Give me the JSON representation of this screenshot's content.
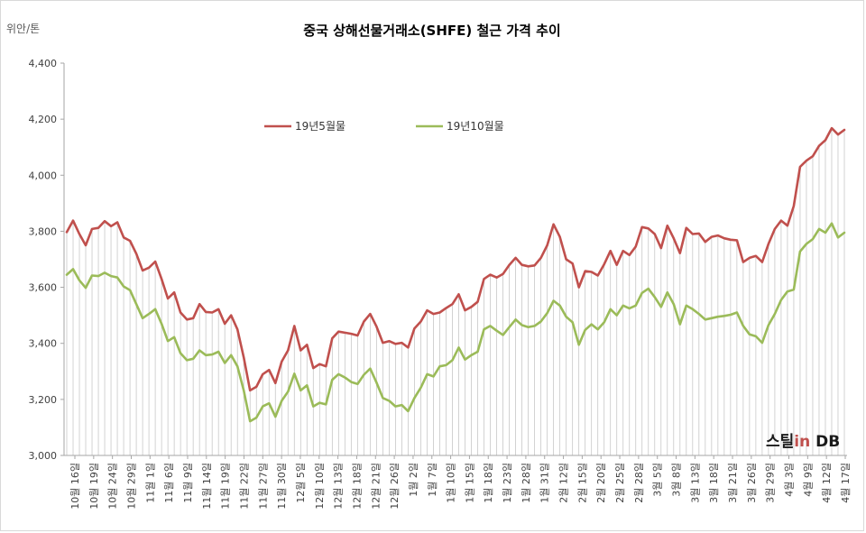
{
  "page": {
    "unit": "위안/톤",
    "title": "중국 상해선물거래소(SHFE) 철근 가격 추이",
    "watermark": {
      "text": "스틸",
      "highlight": "in",
      "suffix": " DB"
    }
  },
  "chart_data": {
    "type": "line",
    "title": "중국 상해선물거래소(SHFE) 철근 가격 추이",
    "ylabel": "위안/톤",
    "ylim": [
      3000,
      4400
    ],
    "yticks": [
      "3,000",
      "3,200",
      "3,400",
      "3,600",
      "3,800",
      "4,000",
      "4,200",
      "4,400"
    ],
    "grid": "vertical-per-point",
    "legend_position": "top-center",
    "x_tick_labels": [
      "10월 16일",
      "10월 19일",
      "10월 24일",
      "10월 29일",
      "11월 1일",
      "11월 6일",
      "11월 9일",
      "11월 14일",
      "11월 19일",
      "11월 22일",
      "11월 27일",
      "11월 30일",
      "12월 5일",
      "12월 10일",
      "12월 13일",
      "12월 18일",
      "12월 21일",
      "12월 26일",
      "1월 2일",
      "1월 7일",
      "1월 10일",
      "1월 15일",
      "1월 18일",
      "1월 23일",
      "1월 28일",
      "1월 31일",
      "2월 12일",
      "2월 15일",
      "2월 20일",
      "2월 25일",
      "2월 28일",
      "3월 5일",
      "3월 8일",
      "3월 13일",
      "3월 18일",
      "3월 21일",
      "3월 26일",
      "3월 29일",
      "4월 3일",
      "4월 9일",
      "4월 12일",
      "4월 17일"
    ],
    "series": [
      {
        "name": "19년5월물",
        "color": "#c0504d",
        "values": [
          3797,
          3838,
          3790,
          3750,
          3808,
          3812,
          3836,
          3818,
          3832,
          3778,
          3766,
          3720,
          3660,
          3670,
          3692,
          3630,
          3560,
          3582,
          3510,
          3485,
          3490,
          3540,
          3512,
          3510,
          3522,
          3470,
          3500,
          3450,
          3350,
          3232,
          3245,
          3290,
          3305,
          3258,
          3335,
          3375,
          3462,
          3375,
          3395,
          3312,
          3326,
          3318,
          3418,
          3442,
          3438,
          3434,
          3428,
          3478,
          3505,
          3460,
          3402,
          3408,
          3398,
          3402,
          3385,
          3453,
          3478,
          3518,
          3505,
          3510,
          3526,
          3540,
          3575,
          3518,
          3530,
          3548,
          3630,
          3645,
          3635,
          3648,
          3680,
          3705,
          3680,
          3675,
          3678,
          3705,
          3750,
          3825,
          3780,
          3700,
          3685,
          3600,
          3658,
          3655,
          3642,
          3682,
          3730,
          3680,
          3730,
          3715,
          3745,
          3815,
          3810,
          3790,
          3740,
          3820,
          3775,
          3722,
          3812,
          3790,
          3792,
          3762,
          3780,
          3785,
          3775,
          3770,
          3768,
          3690,
          3705,
          3712,
          3690,
          3755,
          3808,
          3838,
          3820,
          3890,
          4030,
          4052,
          4068,
          4105,
          4125,
          4168,
          4145,
          4162
        ]
      },
      {
        "name": "19년10월물",
        "color": "#9bbb59",
        "values": [
          3645,
          3665,
          3625,
          3598,
          3642,
          3640,
          3652,
          3640,
          3635,
          3603,
          3590,
          3540,
          3490,
          3505,
          3522,
          3470,
          3408,
          3422,
          3365,
          3340,
          3345,
          3375,
          3358,
          3360,
          3370,
          3330,
          3358,
          3318,
          3232,
          3122,
          3135,
          3175,
          3186,
          3138,
          3195,
          3228,
          3292,
          3232,
          3250,
          3175,
          3188,
          3182,
          3270,
          3290,
          3278,
          3262,
          3255,
          3288,
          3310,
          3260,
          3205,
          3195,
          3175,
          3180,
          3158,
          3205,
          3242,
          3290,
          3282,
          3318,
          3322,
          3340,
          3385,
          3342,
          3358,
          3370,
          3450,
          3462,
          3445,
          3430,
          3458,
          3485,
          3465,
          3458,
          3462,
          3478,
          3508,
          3552,
          3535,
          3495,
          3475,
          3395,
          3448,
          3468,
          3450,
          3475,
          3522,
          3500,
          3535,
          3525,
          3535,
          3580,
          3595,
          3565,
          3530,
          3582,
          3540,
          3468,
          3535,
          3522,
          3505,
          3485,
          3490,
          3495,
          3498,
          3502,
          3510,
          3462,
          3432,
          3425,
          3402,
          3465,
          3505,
          3555,
          3585,
          3592,
          3728,
          3755,
          3772,
          3808,
          3795,
          3828,
          3778,
          3795
        ]
      }
    ]
  }
}
